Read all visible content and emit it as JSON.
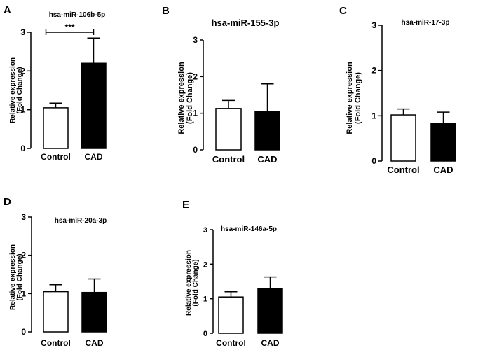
{
  "chart_data": [
    {
      "type": "bar",
      "panel": "A",
      "title": "hsa-miR-106b-5p",
      "ylabel": "Relative expression",
      "ylabel2": "(Fold Change)",
      "categories": [
        "Control",
        "CAD"
      ],
      "values": [
        1.05,
        2.2
      ],
      "errors": [
        0.12,
        0.65
      ],
      "fills": [
        "#ffffff",
        "#000000"
      ],
      "ylim": [
        0,
        3
      ],
      "yticks": [
        "0",
        "1",
        "2",
        "3"
      ],
      "significance": "***"
    },
    {
      "type": "bar",
      "panel": "B",
      "title": "hsa-miR-155-3p",
      "ylabel": "Relative expression",
      "ylabel2": "(Fold Change)",
      "categories": [
        "Control",
        "CAD"
      ],
      "values": [
        1.13,
        1.05
      ],
      "errors": [
        0.22,
        0.75
      ],
      "fills": [
        "#ffffff",
        "#000000"
      ],
      "ylim": [
        0,
        3
      ],
      "yticks": [
        "0",
        "1",
        "2",
        "3"
      ]
    },
    {
      "type": "bar",
      "panel": "C",
      "title": "hsa-miR-17-3p",
      "ylabel": "Relative expression",
      "ylabel2": "(Fold Change)",
      "categories": [
        "Control",
        "CAD"
      ],
      "values": [
        1.02,
        0.83
      ],
      "errors": [
        0.13,
        0.25
      ],
      "fills": [
        "#ffffff",
        "#000000"
      ],
      "ylim": [
        0,
        3
      ],
      "yticks": [
        "0",
        "1",
        "2",
        "3"
      ]
    },
    {
      "type": "bar",
      "panel": "D",
      "title": "hsa-miR-20a-3p",
      "ylabel": "Relative expression",
      "ylabel2": "(Fold Change)",
      "categories": [
        "Control",
        "CAD"
      ],
      "values": [
        1.05,
        1.03
      ],
      "errors": [
        0.18,
        0.35
      ],
      "fills": [
        "#ffffff",
        "#000000"
      ],
      "ylim": [
        0,
        3
      ],
      "yticks": [
        "0",
        "1",
        "2",
        "3"
      ]
    },
    {
      "type": "bar",
      "panel": "E",
      "title": "hsa-miR-146a-5p",
      "ylabel": "Relative expression",
      "ylabel2": "(Fold Change)",
      "categories": [
        "Control",
        "CAD"
      ],
      "values": [
        1.05,
        1.3
      ],
      "errors": [
        0.15,
        0.33
      ],
      "fills": [
        "#ffffff",
        "#000000"
      ],
      "ylim": [
        0,
        3
      ],
      "yticks": [
        "0",
        "1",
        "2",
        "3"
      ]
    }
  ]
}
